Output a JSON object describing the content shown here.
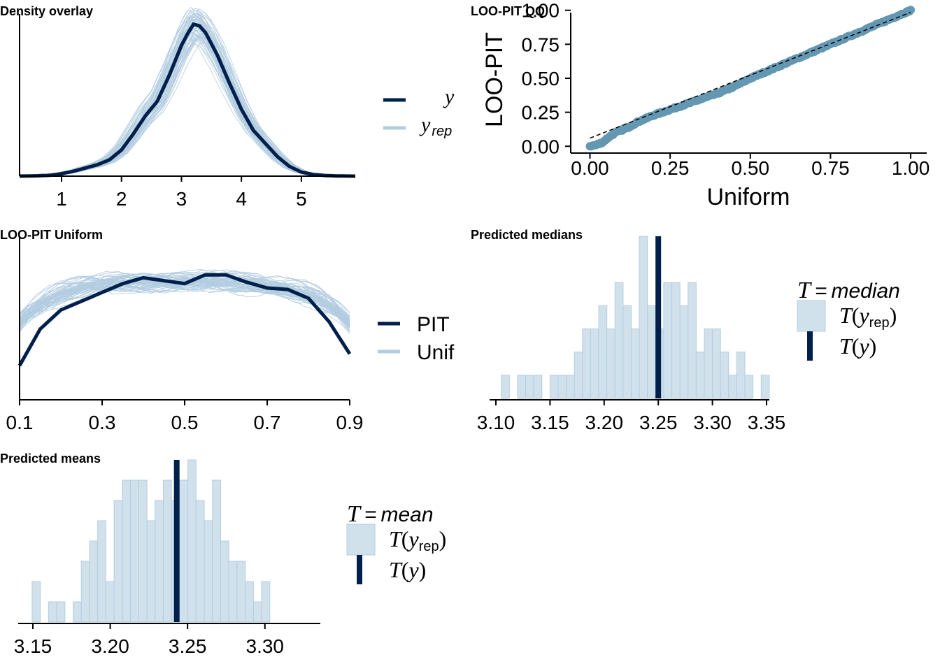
{
  "colors": {
    "dark": "#011f4b",
    "light": "#b3cde0",
    "fill": "#d1e1ec",
    "pit_point": "#6497b1"
  },
  "chart_data": [
    {
      "id": "density",
      "type": "line",
      "title": "Density overlay",
      "xlim": [
        0.3,
        5.9
      ],
      "xticks": [
        1,
        2,
        3,
        4,
        5
      ],
      "legend": {
        "position": "right",
        "entries": [
          {
            "main": "y",
            "sub": ""
          },
          {
            "main": "y",
            "sub": "rep"
          }
        ]
      },
      "y_curve": {
        "x": [
          0.3,
          0.5,
          0.8,
          1.0,
          1.2,
          1.4,
          1.6,
          1.8,
          2.0,
          2.2,
          2.4,
          2.6,
          2.8,
          3.0,
          3.1,
          3.2,
          3.3,
          3.4,
          3.6,
          3.8,
          4.0,
          4.2,
          4.4,
          4.6,
          4.8,
          5.0,
          5.2,
          5.4,
          5.6,
          5.9
        ],
        "y": [
          0.0,
          0.001,
          0.005,
          0.015,
          0.03,
          0.05,
          0.07,
          0.1,
          0.16,
          0.26,
          0.37,
          0.46,
          0.62,
          0.8,
          0.87,
          0.93,
          0.92,
          0.88,
          0.74,
          0.57,
          0.41,
          0.28,
          0.2,
          0.12,
          0.06,
          0.025,
          0.01,
          0.004,
          0.001,
          0.0
        ]
      },
      "yrep_draws": 60
    },
    {
      "id": "pit_qq",
      "type": "scatter",
      "title": "LOO-PIT QQ",
      "xlabel": "Uniform",
      "ylabel": "LOO-PIT",
      "xlim": [
        -0.06,
        1.05
      ],
      "ylim": [
        -0.05,
        1.05
      ],
      "xticks": [
        "0.00",
        "0.25",
        "0.50",
        "0.75",
        "1.00"
      ],
      "yticks": [
        "0.00",
        "0.25",
        "0.50",
        "0.75",
        "1.00"
      ],
      "reference_line": "y = x (dashed)",
      "points": {
        "x": [
          0,
          0.02,
          0.04,
          0.06,
          0.08,
          0.1,
          0.12,
          0.15,
          0.2,
          0.25,
          0.3,
          0.35,
          0.4,
          0.45,
          0.5,
          0.55,
          0.6,
          0.65,
          0.7,
          0.75,
          0.8,
          0.85,
          0.9,
          0.95,
          1.0
        ],
        "y": [
          0.0,
          0.01,
          0.03,
          0.07,
          0.1,
          0.12,
          0.14,
          0.18,
          0.23,
          0.27,
          0.31,
          0.35,
          0.39,
          0.44,
          0.5,
          0.55,
          0.6,
          0.65,
          0.7,
          0.75,
          0.8,
          0.85,
          0.9,
          0.95,
          1.0
        ]
      }
    },
    {
      "id": "pit_uniform",
      "type": "line",
      "title": "LOO-PIT Uniform",
      "xlim": [
        0.1,
        0.9
      ],
      "xticks": [
        "0.1",
        "0.3",
        "0.5",
        "0.7",
        "0.9"
      ],
      "legend": {
        "position": "right",
        "entries": [
          "PIT",
          "Unif"
        ]
      },
      "pit_curve": {
        "x": [
          0.1,
          0.15,
          0.2,
          0.25,
          0.3,
          0.35,
          0.4,
          0.45,
          0.5,
          0.55,
          0.6,
          0.65,
          0.7,
          0.75,
          0.8,
          0.85,
          0.9
        ],
        "y": [
          0.2,
          0.45,
          0.58,
          0.64,
          0.7,
          0.76,
          0.8,
          0.78,
          0.76,
          0.82,
          0.82,
          0.77,
          0.73,
          0.72,
          0.66,
          0.5,
          0.28
        ]
      },
      "unif_draws": 60
    },
    {
      "id": "pred_medians",
      "type": "bar",
      "title": "Predicted medians",
      "xlim": [
        3.1,
        3.35
      ],
      "xticks": [
        "3.10",
        "3.15",
        "3.20",
        "3.25",
        "3.30",
        "3.35"
      ],
      "bin_start": 3.105,
      "bin_width": 0.0075,
      "counts": [
        1,
        0,
        1,
        1,
        1,
        0,
        1,
        1,
        1,
        2,
        3,
        3,
        4,
        3,
        5,
        4,
        3,
        7,
        4,
        3,
        5,
        5,
        4,
        5,
        2,
        3,
        3,
        2,
        1,
        2,
        1,
        0,
        1
      ],
      "observed": 3.25,
      "legend": {
        "position": "right",
        "stat": "median",
        "entries": [
          "T(y_rep)",
          "T(y)"
        ]
      }
    },
    {
      "id": "pred_means",
      "type": "bar",
      "title": "Predicted means",
      "xlim": [
        3.15,
        3.32
      ],
      "xticks": [
        "3.15",
        "3.20",
        "3.25",
        "3.30"
      ],
      "bin_start": 3.1495,
      "bin_width": 0.0053,
      "counts": [
        2,
        0,
        1,
        1,
        0,
        1,
        3,
        4,
        5,
        2,
        6,
        7,
        7,
        7,
        5,
        6,
        7,
        6,
        7,
        8,
        6,
        5,
        7,
        4,
        3,
        3,
        2,
        1,
        2
      ],
      "observed": 3.243,
      "legend": {
        "position": "right",
        "stat": "mean",
        "entries": [
          "T(y_rep)",
          "T(y)"
        ]
      }
    }
  ]
}
